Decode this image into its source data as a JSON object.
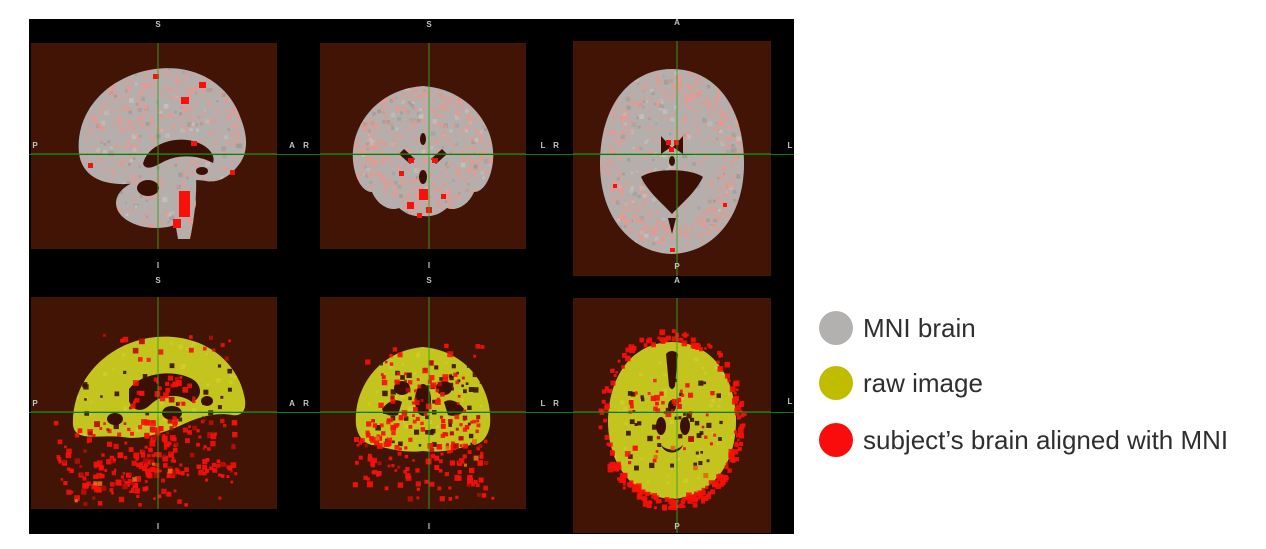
{
  "viewer": {
    "background": "#000000",
    "panel_background": "#421405",
    "hole_color": "#3a1004",
    "crosshair_color": "#0d7a0d",
    "crosshair_bright_color": "#3aa21c",
    "orientation_label_color": "#c4c4c4",
    "colors": {
      "mni_gray": "#b4afac",
      "overlay_pink": "#ef958b",
      "raw_yellow": "#c4c41f",
      "aligned_red": "#f81109",
      "accent_orange": "#e06a10"
    },
    "rows": [
      {
        "name": "MNI brain with aligned subject overlay",
        "panels": [
          {
            "view": "sagittal",
            "labels": {
              "top": "S",
              "bottom": "I",
              "left": "P",
              "right": "A"
            }
          },
          {
            "view": "coronal",
            "labels": {
              "top": "S",
              "bottom": "I",
              "left": "R",
              "right": "L"
            }
          },
          {
            "view": "axial",
            "labels": {
              "top": "A",
              "bottom": "P",
              "left": "R",
              "right": "L"
            }
          }
        ]
      },
      {
        "name": "raw image with aligned subject overlay",
        "panels": [
          {
            "view": "sagittal",
            "labels": {
              "top": "S",
              "bottom": "I",
              "left": "P",
              "right": "A"
            }
          },
          {
            "view": "coronal",
            "labels": {
              "top": "S",
              "bottom": "I",
              "left": "R",
              "right": "L"
            }
          },
          {
            "view": "axial",
            "labels": {
              "top": "A",
              "bottom": "P",
              "left": "R",
              "right": "L"
            }
          }
        ]
      }
    ]
  },
  "legend": {
    "items": [
      {
        "label": "MNI brain",
        "color": "#b3b0b0"
      },
      {
        "label": "raw image",
        "color": "#c0bc00"
      },
      {
        "label": "subject’s brain aligned with MNI",
        "color": "#f90c0b"
      }
    ]
  }
}
